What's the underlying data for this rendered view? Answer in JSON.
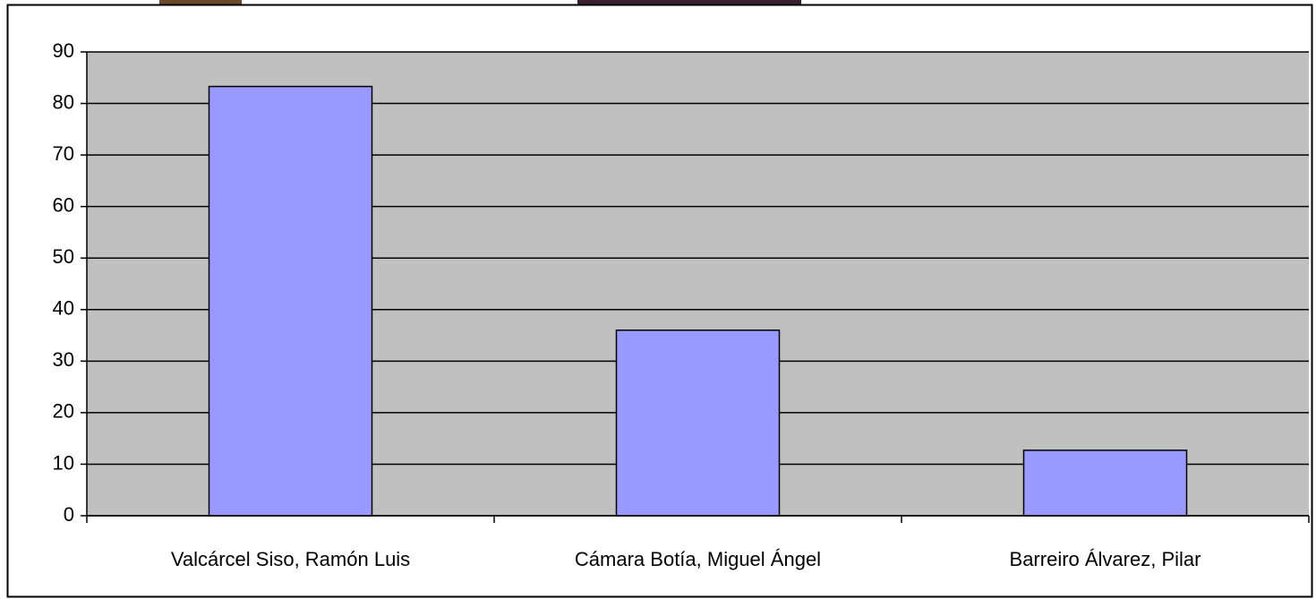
{
  "chart_data": {
    "type": "bar",
    "categories": [
      "Valcárcel Siso, Ramón Luis",
      "Cámara Botía, Miguel Ángel",
      "Barreiro Álvarez, Pilar"
    ],
    "values": [
      83.3,
      36,
      12.7
    ],
    "color": "#9999ff",
    "ylim": [
      0,
      90
    ],
    "yticks": [
      0,
      10,
      20,
      30,
      40,
      50,
      60,
      70,
      80,
      90
    ],
    "grid": true
  }
}
